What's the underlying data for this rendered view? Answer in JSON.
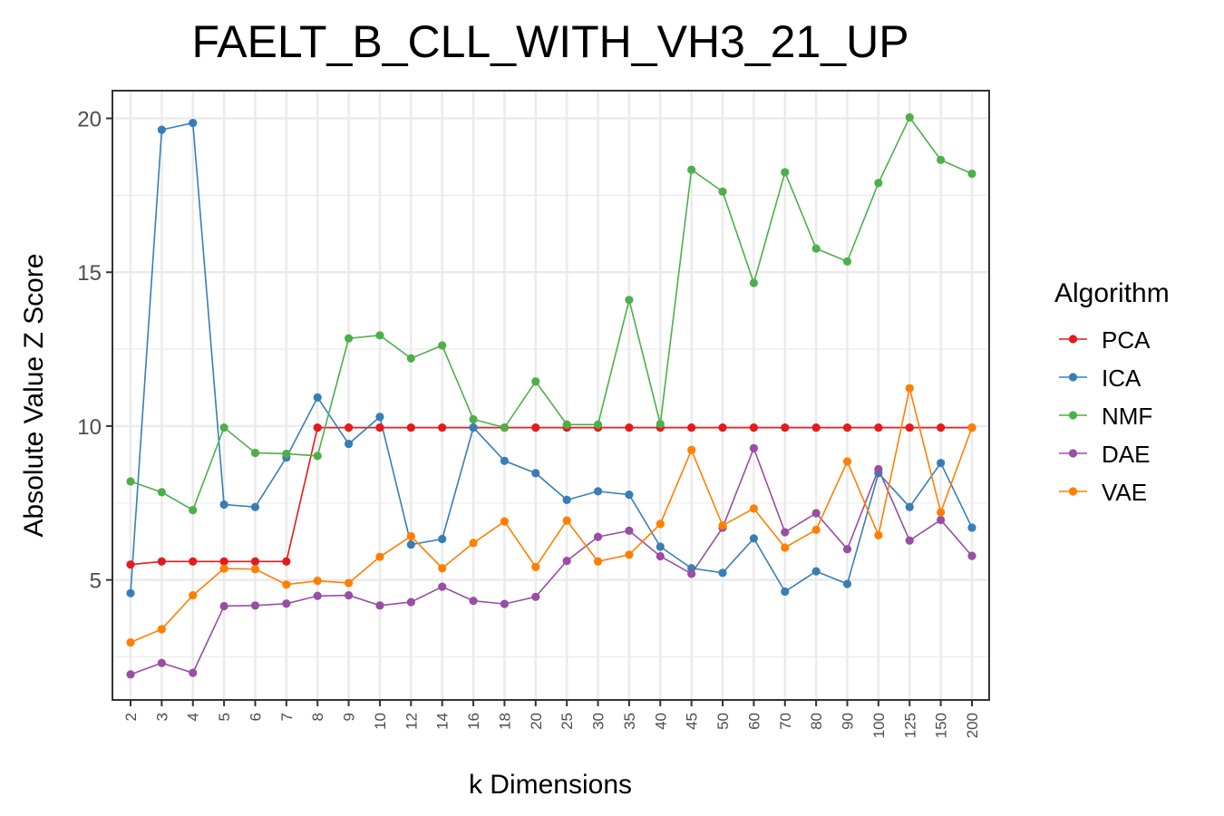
{
  "chart_data": {
    "type": "line",
    "title": "FAELT_B_CLL_WITH_VH3_21_UP",
    "xlabel": "k Dimensions",
    "ylabel": "Absolute Value Z Score",
    "categories": [
      "2",
      "3",
      "4",
      "5",
      "6",
      "7",
      "8",
      "9",
      "10",
      "12",
      "14",
      "16",
      "18",
      "20",
      "25",
      "30",
      "35",
      "40",
      "45",
      "50",
      "60",
      "70",
      "80",
      "90",
      "100",
      "125",
      "150",
      "200"
    ],
    "ylim": [
      1.1,
      20.9
    ],
    "yticks": [
      5,
      10,
      15,
      20
    ],
    "grid": true,
    "legend": {
      "title": "Algorithm",
      "position": "right"
    },
    "series": [
      {
        "name": "PCA",
        "color": "#E41A1C",
        "values": [
          5.5,
          5.6,
          5.6,
          5.6,
          5.6,
          5.6,
          9.95,
          9.95,
          9.95,
          9.95,
          9.95,
          9.95,
          9.95,
          9.95,
          9.95,
          9.95,
          9.95,
          9.95,
          9.95,
          9.95,
          9.95,
          9.95,
          9.95,
          9.95,
          9.95,
          9.95,
          9.95,
          9.95
        ]
      },
      {
        "name": "ICA",
        "color": "#377EB8",
        "values": [
          4.57,
          19.63,
          19.85,
          7.45,
          7.37,
          8.98,
          10.93,
          9.42,
          10.3,
          6.15,
          6.33,
          9.95,
          8.87,
          8.47,
          7.6,
          7.88,
          7.77,
          6.08,
          5.38,
          5.23,
          6.35,
          4.62,
          5.28,
          4.87,
          8.47,
          7.37,
          8.8,
          6.7
        ]
      },
      {
        "name": "NMF",
        "color": "#4DAF4A",
        "values": [
          8.2,
          7.85,
          7.27,
          9.95,
          9.13,
          9.1,
          9.03,
          12.85,
          12.95,
          12.2,
          12.62,
          10.22,
          9.95,
          11.45,
          10.05,
          10.05,
          14.1,
          10.07,
          18.33,
          17.62,
          14.65,
          18.25,
          15.77,
          15.35,
          17.9,
          20.03,
          18.65,
          18.2
        ]
      },
      {
        "name": "DAE",
        "color": "#984EA3",
        "values": [
          1.93,
          2.3,
          1.98,
          4.15,
          4.17,
          4.23,
          4.48,
          4.5,
          4.17,
          4.28,
          4.78,
          4.32,
          4.22,
          4.45,
          5.62,
          6.4,
          6.6,
          5.77,
          5.2,
          6.7,
          9.28,
          6.55,
          7.17,
          6.0,
          8.6,
          6.28,
          6.95,
          5.78
        ]
      },
      {
        "name": "VAE",
        "color": "#FF7F00",
        "values": [
          2.97,
          3.4,
          4.5,
          5.37,
          5.35,
          4.85,
          4.97,
          4.9,
          5.75,
          6.42,
          5.38,
          6.2,
          6.9,
          5.42,
          6.93,
          5.6,
          5.82,
          6.82,
          9.22,
          6.77,
          7.32,
          6.05,
          6.63,
          8.85,
          6.45,
          11.23,
          7.2,
          9.95
        ]
      }
    ]
  }
}
